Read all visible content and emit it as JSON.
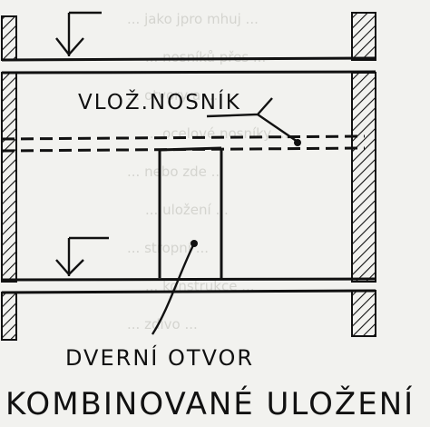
{
  "labels": {
    "beam": "VLOŽ.NOSNÍK",
    "door_opening": "DVERNÍ OTVOR",
    "title": "KOMBINOVANÉ ULOŽENÍ"
  },
  "background_text_lines": [
    "... jako jpro mhuj ...",
    "... nosníků přes ...",
    "... otvory a ...",
    "... ocelové nosníky ...",
    "... nebo zde ...",
    "... uložení ...",
    "... stropní ...",
    "... konstrukce ...",
    "... zdivo ..."
  ],
  "colors": {
    "ink": "#111111",
    "paper": "#f2f2ef",
    "ghost_text": "#d4d4cf"
  }
}
